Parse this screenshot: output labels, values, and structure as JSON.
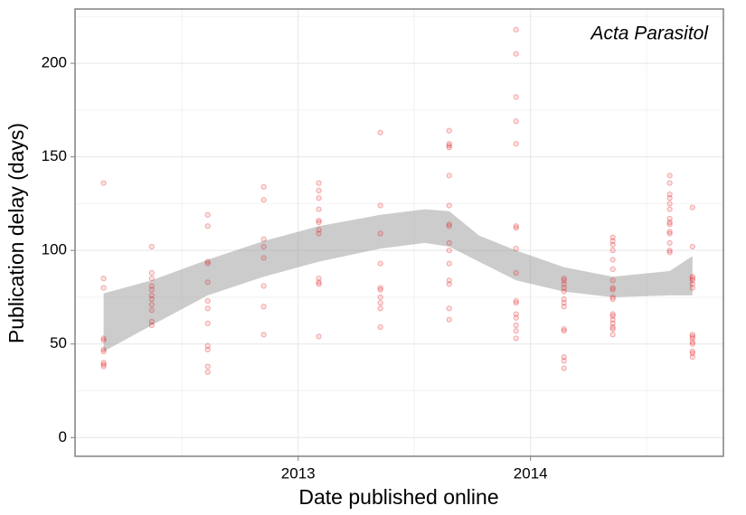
{
  "chart_data": {
    "type": "scatter",
    "annotation": "Acta Parasitol",
    "x_label": "Date published online",
    "y_label": "Publication delay (days)",
    "xlim": [
      2012.04,
      2014.83
    ],
    "ylim": [
      -10,
      229
    ],
    "xticks": [
      2013,
      2014
    ],
    "yticks": [
      0,
      50,
      100,
      150,
      200
    ],
    "grid": true,
    "color": "#e31a1c",
    "x": [
      2012.163,
      2012.163,
      2012.163,
      2012.163,
      2012.163,
      2012.163,
      2012.163,
      2012.163,
      2012.163,
      2012.163,
      2012.37,
      2012.37,
      2012.37,
      2012.37,
      2012.37,
      2012.37,
      2012.37,
      2012.37,
      2012.37,
      2012.37,
      2012.37,
      2012.611,
      2012.611,
      2012.611,
      2012.611,
      2012.611,
      2012.611,
      2012.611,
      2012.611,
      2012.611,
      2012.611,
      2012.611,
      2012.611,
      2012.852,
      2012.852,
      2012.852,
      2012.852,
      2012.852,
      2012.852,
      2012.852,
      2012.852,
      2013.089,
      2013.089,
      2013.089,
      2013.089,
      2013.089,
      2013.089,
      2013.089,
      2013.089,
      2013.089,
      2013.089,
      2013.089,
      2013.089,
      2013.354,
      2013.354,
      2013.354,
      2013.354,
      2013.354,
      2013.354,
      2013.354,
      2013.354,
      2013.354,
      2013.354,
      2013.65,
      2013.65,
      2013.65,
      2013.65,
      2013.65,
      2013.65,
      2013.65,
      2013.65,
      2013.65,
      2013.65,
      2013.65,
      2013.65,
      2013.65,
      2013.65,
      2013.65,
      2013.938,
      2013.938,
      2013.938,
      2013.938,
      2013.938,
      2013.938,
      2013.938,
      2013.938,
      2013.938,
      2013.938,
      2013.938,
      2013.938,
      2013.938,
      2013.938,
      2013.938,
      2013.938,
      2014.144,
      2014.144,
      2014.144,
      2014.144,
      2014.144,
      2014.144,
      2014.144,
      2014.144,
      2014.144,
      2014.144,
      2014.144,
      2014.144,
      2014.144,
      2014.354,
      2014.354,
      2014.354,
      2014.354,
      2014.354,
      2014.354,
      2014.354,
      2014.354,
      2014.354,
      2014.354,
      2014.354,
      2014.354,
      2014.354,
      2014.354,
      2014.354,
      2014.354,
      2014.354,
      2014.354,
      2014.599,
      2014.599,
      2014.599,
      2014.599,
      2014.599,
      2014.599,
      2014.599,
      2014.599,
      2014.599,
      2014.599,
      2014.599,
      2014.599,
      2014.599,
      2014.599,
      2014.697,
      2014.697,
      2014.697,
      2014.697,
      2014.697,
      2014.697,
      2014.697,
      2014.697,
      2014.697,
      2014.697,
      2014.697,
      2014.697,
      2014.697,
      2014.697,
      2014.697
    ],
    "values": [
      136,
      85,
      80,
      53,
      52,
      47,
      46,
      40,
      39,
      38,
      102,
      88,
      85,
      81,
      79,
      76,
      74,
      71,
      68,
      62,
      60,
      119,
      113,
      94,
      93,
      83,
      73,
      69,
      61,
      49,
      47,
      38,
      35,
      134,
      127,
      106,
      102,
      96,
      81,
      70,
      55,
      136,
      132,
      128,
      122,
      116,
      115,
      111,
      109,
      85,
      83,
      82,
      54,
      163,
      124,
      109,
      93,
      80,
      79,
      75,
      72,
      69,
      59,
      164,
      157,
      156,
      155,
      140,
      124,
      114,
      113,
      104,
      100,
      93,
      84,
      82,
      69,
      63,
      218,
      205,
      182,
      169,
      157,
      113,
      112,
      101,
      88,
      73,
      72,
      66,
      64,
      60,
      57,
      53,
      85,
      84,
      82,
      80,
      78,
      74,
      72,
      70,
      58,
      57,
      43,
      41,
      37,
      107,
      105,
      103,
      100,
      95,
      90,
      84,
      80,
      79,
      75,
      74,
      66,
      65,
      63,
      61,
      59,
      58,
      55,
      140,
      136,
      130,
      128,
      125,
      122,
      117,
      115,
      114,
      110,
      109,
      104,
      100,
      99,
      123,
      102,
      86,
      85,
      84,
      82,
      80,
      55,
      54,
      53,
      51,
      50,
      46,
      45,
      43
    ],
    "band": {
      "color": "#999999",
      "x": [
        2012.163,
        2012.37,
        2012.611,
        2012.852,
        2013.089,
        2013.354,
        2013.545,
        2013.65,
        2013.778,
        2013.938,
        2014.144,
        2014.354,
        2014.599,
        2014.697
      ],
      "upper": [
        77,
        84,
        95,
        105,
        113,
        119,
        122,
        121,
        108,
        100,
        91,
        86,
        89,
        97
      ],
      "lower": [
        46,
        60,
        76,
        86,
        94,
        101,
        104,
        102,
        94,
        84,
        78,
        75,
        76,
        76
      ]
    }
  }
}
